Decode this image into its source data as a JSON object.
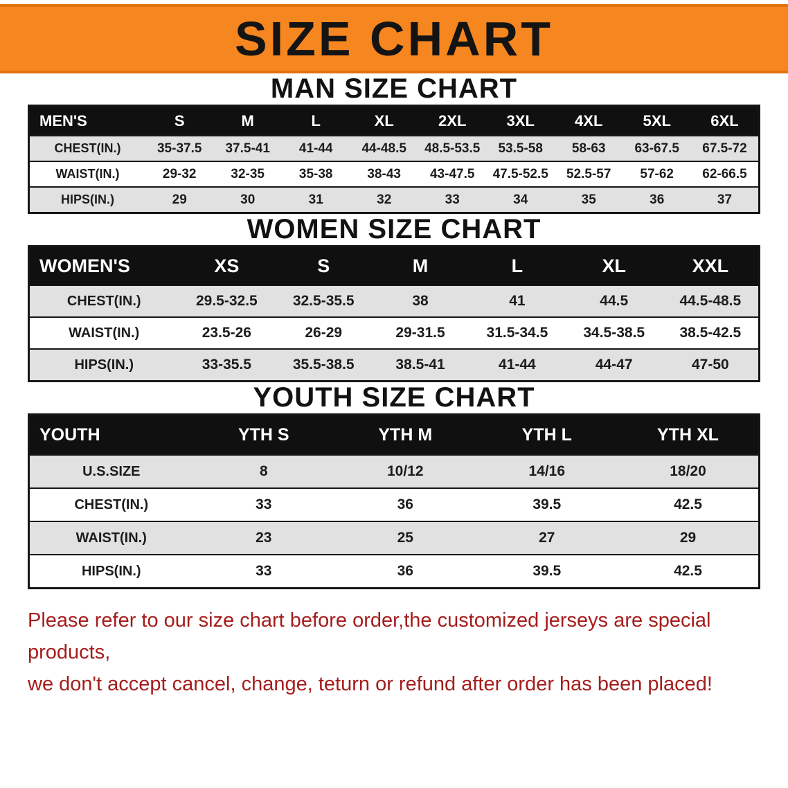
{
  "banner": {
    "title": "SIZE CHART"
  },
  "colors": {
    "banner_bg": "#f6861f",
    "table_header_bg": "#101010",
    "row_alt_bg": "#e1e1e1",
    "footer_text": "#a51d1d"
  },
  "sections": [
    {
      "heading": "MAN SIZE CHART",
      "table": {
        "header": [
          "MEN'S",
          "S",
          "M",
          "L",
          "XL",
          "2XL",
          "3XL",
          "4XL",
          "5XL",
          "6XL"
        ],
        "rows": [
          [
            "CHEST(IN.)",
            "35-37.5",
            "37.5-41",
            "41-44",
            "44-48.5",
            "48.5-53.5",
            "53.5-58",
            "58-63",
            "63-67.5",
            "67.5-72"
          ],
          [
            "WAIST(IN.)",
            "29-32",
            "32-35",
            "35-38",
            "38-43",
            "43-47.5",
            "47.5-52.5",
            "52.5-57",
            "57-62",
            "62-66.5"
          ],
          [
            "HIPS(IN.)",
            "29",
            "30",
            "31",
            "32",
            "33",
            "34",
            "35",
            "36",
            "37"
          ]
        ]
      }
    },
    {
      "heading": "WOMEN SIZE CHART",
      "table": {
        "header": [
          "WOMEN'S",
          "XS",
          "S",
          "M",
          "L",
          "XL",
          "XXL"
        ],
        "rows": [
          [
            "CHEST(IN.)",
            "29.5-32.5",
            "32.5-35.5",
            "38",
            "41",
            "44.5",
            "44.5-48.5"
          ],
          [
            "WAIST(IN.)",
            "23.5-26",
            "26-29",
            "29-31.5",
            "31.5-34.5",
            "34.5-38.5",
            "38.5-42.5"
          ],
          [
            "HIPS(IN.)",
            "33-35.5",
            "35.5-38.5",
            "38.5-41",
            "41-44",
            "44-47",
            "47-50"
          ]
        ]
      }
    },
    {
      "heading": "YOUTH SIZE CHART",
      "table": {
        "header": [
          "YOUTH",
          "YTH S",
          "YTH M",
          "YTH L",
          "YTH XL"
        ],
        "rows": [
          [
            "U.S.SIZE",
            "8",
            "10/12",
            "14/16",
            "18/20"
          ],
          [
            "CHEST(IN.)",
            "33",
            "36",
            "39.5",
            "42.5"
          ],
          [
            "WAIST(IN.)",
            "23",
            "25",
            "27",
            "29"
          ],
          [
            "HIPS(IN.)",
            "33",
            "36",
            "39.5",
            "42.5"
          ]
        ]
      }
    }
  ],
  "footer": {
    "line1": "Please refer to our size chart before order,the customized jerseys are special products,",
    "line2": "we don't accept cancel, change, teturn or refund after order has been placed!"
  }
}
